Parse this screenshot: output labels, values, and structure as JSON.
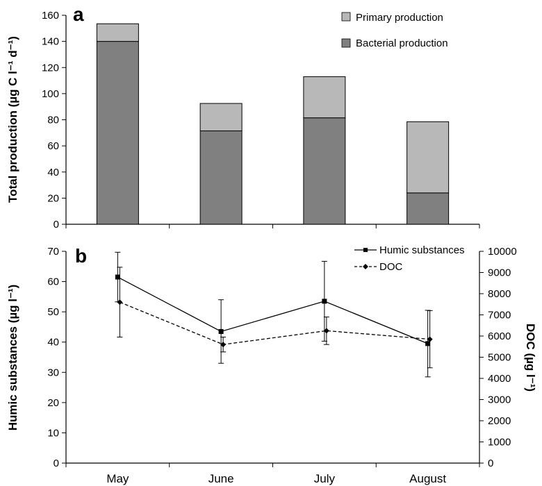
{
  "chart_data": [
    {
      "panel": "a",
      "type": "bar",
      "stacked": true,
      "categories": [
        "May",
        "June",
        "July",
        "August"
      ],
      "series": [
        {
          "name": "Bacterial production",
          "values": [
            140,
            71.5,
            81.5,
            24
          ],
          "color": "#808080"
        },
        {
          "name": "Primary production",
          "values": [
            13.5,
            21,
            31.5,
            54.5
          ],
          "color": "#b8b8b8"
        }
      ],
      "totals": [
        153.5,
        92.5,
        113,
        78.5
      ],
      "ylabel": "Total production (µg C l⁻¹ d⁻¹)",
      "ylim": [
        0,
        160
      ],
      "yticks": [
        "0",
        "20",
        "40",
        "60",
        "80",
        "100",
        "120",
        "140",
        "160"
      ],
      "legend_position": "top-right"
    },
    {
      "panel": "b",
      "type": "line",
      "categories": [
        "May",
        "June",
        "July",
        "August"
      ],
      "series": [
        {
          "name": "Humic substances",
          "axis": "left",
          "values": [
            61.5,
            43.5,
            53.5,
            39.5
          ],
          "err": [
            8.2,
            10.5,
            13.2,
            11.0
          ],
          "style": "solid",
          "marker": "square"
        },
        {
          "name": "DOC",
          "axis": "right",
          "values": [
            7600,
            5600,
            6250,
            5850
          ],
          "err": [
            1650,
            350,
            650,
            1350
          ],
          "style": "dashed",
          "marker": "diamond"
        }
      ],
      "ylabel_left": "Humic substances (µg l⁻¹)",
      "ylabel_right": "DOC (µg l⁻¹)",
      "ylim_left": [
        0,
        70
      ],
      "ylim_right": [
        0,
        10000
      ],
      "yticks_left": [
        "0",
        "10",
        "20",
        "30",
        "40",
        "50",
        "60",
        "70"
      ],
      "yticks_right": [
        "0",
        "1000",
        "2000",
        "3000",
        "4000",
        "5000",
        "6000",
        "7000",
        "8000",
        "9000",
        "10000"
      ],
      "legend_position": "top-right"
    }
  ]
}
